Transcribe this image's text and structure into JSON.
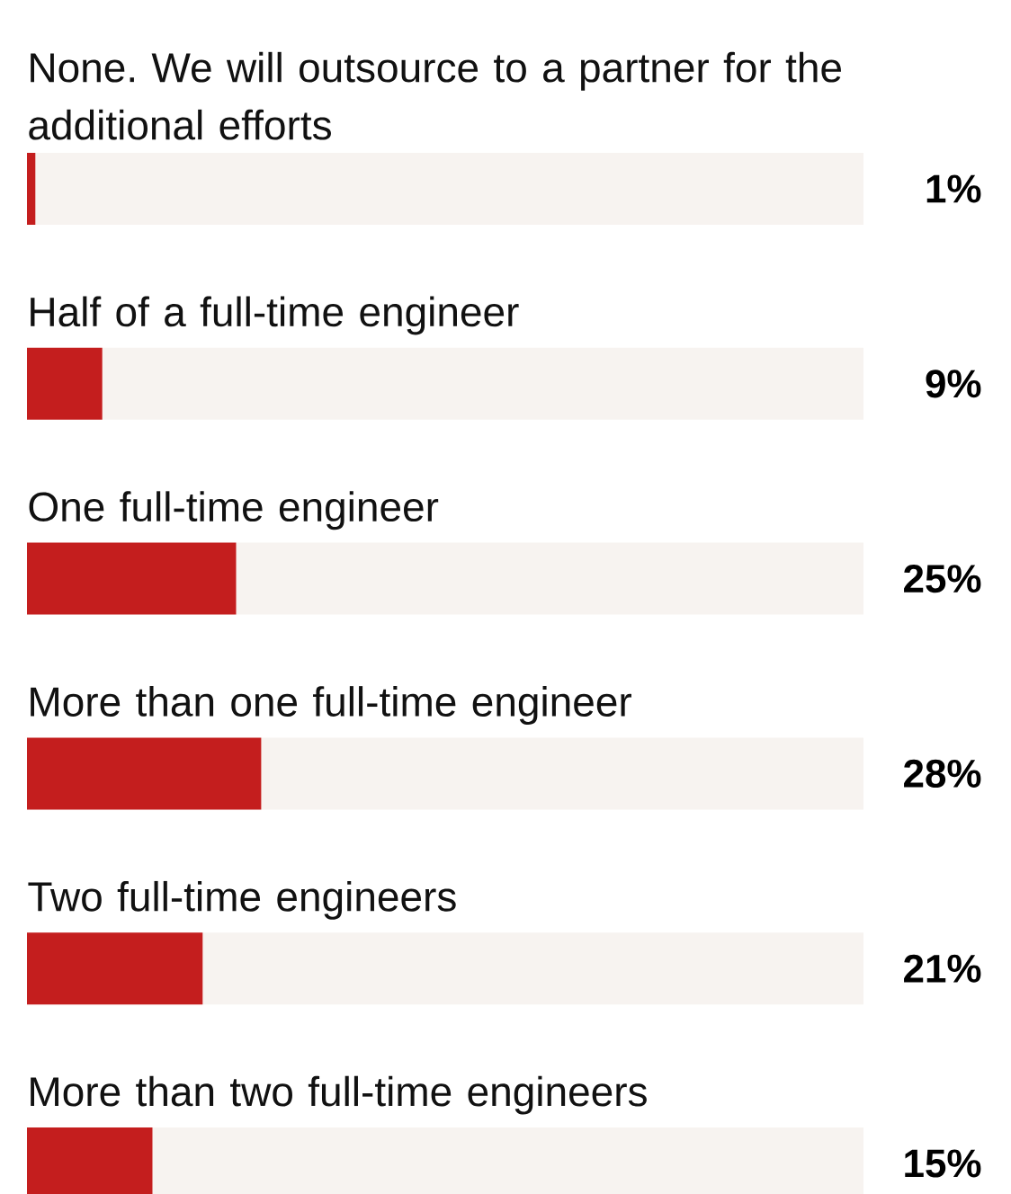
{
  "chart_data": {
    "type": "bar",
    "orientation": "horizontal",
    "stacked": true,
    "categories": [
      "None. We will outsource to a partner for the additional efforts",
      "Half of a full-time engineer",
      "One full-time engineer",
      "More than one full-time engineer",
      "Two full-time engineers",
      "More than two full-time engineers"
    ],
    "series": [
      {
        "color": "#c41e1e",
        "values": [
          1,
          9,
          25,
          28,
          21,
          15
        ],
        "value_labels": [
          "1%",
          "9%",
          "25%",
          "28%",
          "21%",
          "15%"
        ]
      },
      {
        "color": "#f7f3f0",
        "values": [
          99,
          91,
          75,
          72,
          79,
          85
        ]
      }
    ],
    "xlim": [
      0,
      100
    ]
  }
}
